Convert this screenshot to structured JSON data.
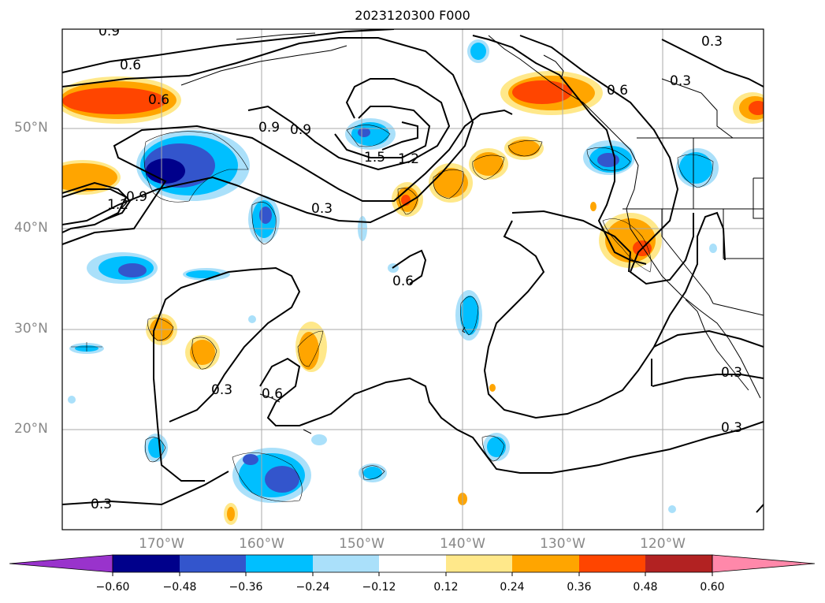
{
  "title": "2023120300 F000",
  "lat_labels": [
    "50°N",
    "40°N",
    "30°N",
    "20°N"
  ],
  "lon_labels": [
    "170°W",
    "160°W",
    "150°W",
    "140°W",
    "130°W",
    "120°W"
  ],
  "contour_labels": {
    "c1": "0.9",
    "c2": "0.6",
    "c3": "0.6",
    "c4": "0.9",
    "c5": "0.9",
    "c6": "1.5",
    "c7": "1.2",
    "c8": "0.3",
    "c9": "0.9",
    "c10": "1.2",
    "c11": "0.6",
    "c12": "0.3",
    "c13": "0.6",
    "c14": "0.3",
    "c15": "0.3",
    "c16": "0.3",
    "c17": "0.3",
    "c18": "0.6",
    "c19": "0.3"
  },
  "colorbar": {
    "ticks": [
      "−0.60",
      "−0.48",
      "−0.36",
      "−0.24",
      "−0.12",
      "0.12",
      "0.24",
      "0.36",
      "0.48",
      "0.60"
    ],
    "colors": [
      "#9933cc",
      "#00008b",
      "#3355cc",
      "#00bfff",
      "#aae0fa",
      "#ffffff",
      "#ffe88a",
      "#ffa500",
      "#ff4500",
      "#b22222",
      "#ff88aa"
    ]
  }
}
